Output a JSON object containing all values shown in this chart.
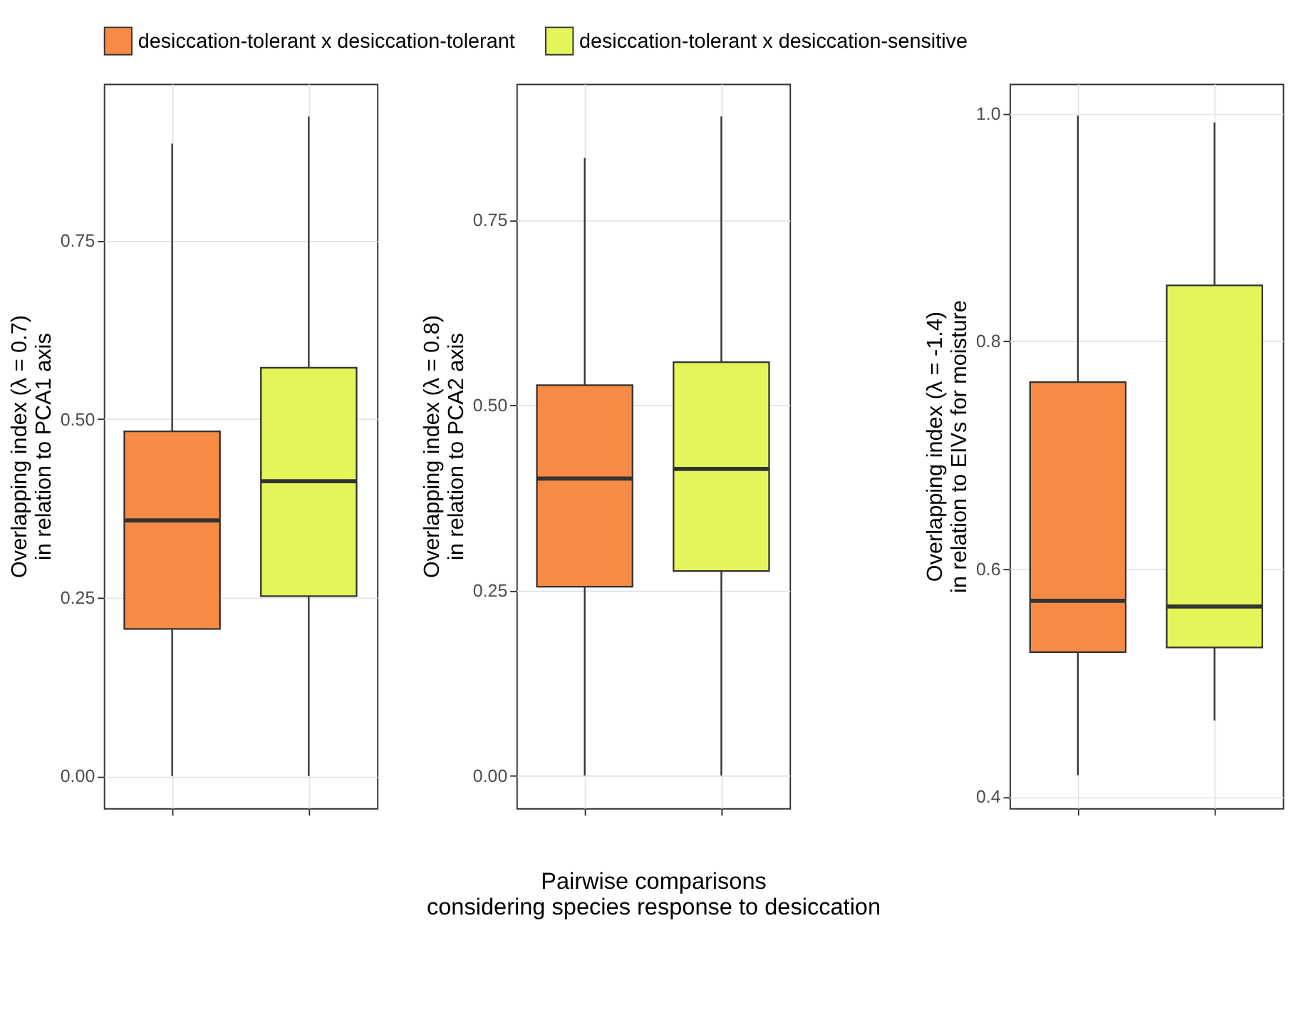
{
  "chart_data": [
    {
      "type": "box",
      "categories": [
        null,
        null
      ],
      "ylabel": "Overlapping index (λ = 0.7)\nin relation to PCA1 axis",
      "ylim": [
        -0.045,
        0.97
      ],
      "yticks": [
        {
          "value": 0,
          "label": "0.00"
        },
        0.25,
        {
          "value": 0.5,
          "label": "0.50"
        },
        0.75
      ],
      "grid": true,
      "legend": "top",
      "tick_labels": "y",
      "series": [
        {
          "name": "desiccation-tolerant x desiccation-tolerant",
          "color": "#f58b44",
          "boxes": [
            {
              "low": 0,
              "q1": 0.206,
              "median": 0.358,
              "q3": 0.483,
              "high": 0.886
            },
            null
          ]
        },
        {
          "name": "desiccation-tolerant x desiccation-sensitive",
          "color": "#e4f55a",
          "boxes": [
            null,
            {
              "low": 0,
              "q1": 0.252,
              "median": 0.413,
              "q3": 0.572,
              "high": 0.924
            }
          ]
        }
      ]
    },
    {
      "type": "box",
      "categories": [
        null,
        null
      ],
      "ylabel": "Overlapping index (λ = 0.8)\nin relation to PCA2 axis",
      "xlabel": "Pairwise comparisons\nconsidering species response to desiccation",
      "ylim": [
        -0.044,
        0.934
      ],
      "yticks": [
        {
          "value": 0,
          "label": "0.00"
        },
        0.25,
        {
          "value": 0.5,
          "label": "0.50"
        },
        0.75
      ],
      "grid": true,
      "tick_labels": "y",
      "series": [
        {
          "name": "desiccation-tolerant x desiccation-tolerant",
          "color": "#f58b44",
          "boxes": [
            {
              "low": 0,
              "q1": 0.255,
              "median": 0.401,
              "q3": 0.527,
              "high": 0.834
            },
            null
          ]
        },
        {
          "name": "desiccation-tolerant x desiccation-sensitive",
          "color": "#e4f55a",
          "boxes": [
            null,
            {
              "low": 0,
              "q1": 0.276,
              "median": 0.414,
              "q3": 0.558,
              "high": 0.89
            }
          ]
        }
      ]
    },
    {
      "type": "box",
      "categories": [
        null,
        null
      ],
      "ylabel": "Overlapping index (λ = -1.4)\nin relation to EIVs for moisture",
      "ylim": [
        0.39,
        1.026
      ],
      "yticks": [
        0.4,
        0.6,
        0.8,
        {
          "value": 1,
          "label": "1.0"
        }
      ],
      "grid": true,
      "tick_labels": "y",
      "series": [
        {
          "name": "desiccation-tolerant x desiccation-tolerant",
          "color": "#f58b44",
          "boxes": [
            {
              "low": 0.419,
              "q1": 0.527,
              "median": 0.572,
              "q3": 0.764,
              "high": 0.998
            },
            null
          ]
        },
        {
          "name": "desiccation-tolerant x desiccation-sensitive",
          "color": "#e4f55a",
          "boxes": [
            null,
            {
              "low": 0.467,
              "q1": 0.531,
              "median": 0.567,
              "q3": 0.849,
              "high": 0.992
            }
          ]
        }
      ]
    }
  ]
}
